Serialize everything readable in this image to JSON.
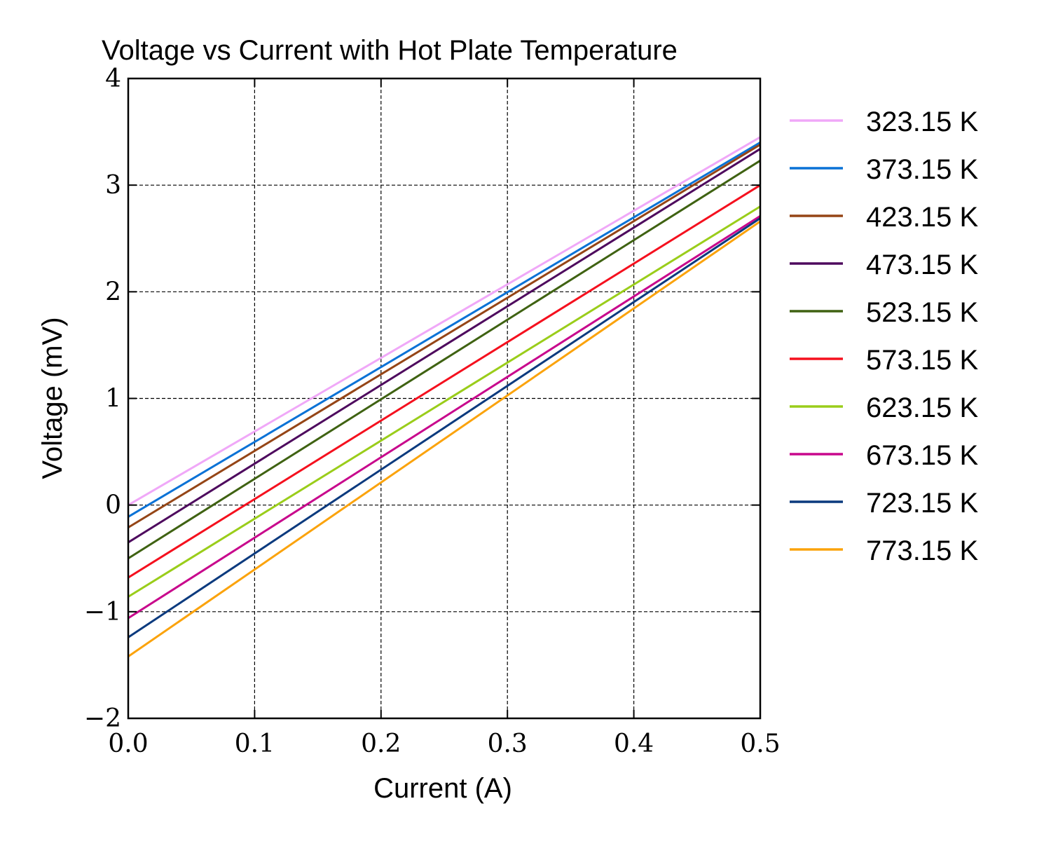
{
  "chart_data": {
    "type": "line",
    "title": "Voltage vs Current with Hot Plate Temperature",
    "xlabel": "Current (A)",
    "ylabel": "Voltage (mV)",
    "xlim": [
      0,
      0.5
    ],
    "ylim": [
      -2,
      4
    ],
    "xticks": [
      0,
      0.1,
      0.2,
      0.3,
      0.4,
      0.5
    ],
    "xtick_labels": [
      "0.0",
      "0.1",
      "0.2",
      "0.3",
      "0.4",
      "0.5"
    ],
    "yticks": [
      -2,
      -1,
      0,
      1,
      2,
      3,
      4
    ],
    "ytick_labels": [
      "−2",
      "−1",
      "0",
      "1",
      "2",
      "3",
      "4"
    ],
    "grid": true,
    "legend_position": "outside-right",
    "x": [
      0,
      0.5
    ],
    "series": [
      {
        "name": "323.15 K",
        "color": "#f0a8f8",
        "values": [
          0.0,
          3.45
        ]
      },
      {
        "name": "373.15 K",
        "color": "#0a72d6",
        "values": [
          -0.11,
          3.4
        ]
      },
      {
        "name": "423.15 K",
        "color": "#954516",
        "values": [
          -0.21,
          3.38
        ]
      },
      {
        "name": "473.15 K",
        "color": "#4e0a5e",
        "values": [
          -0.35,
          3.34
        ]
      },
      {
        "name": "523.15 K",
        "color": "#3f6212",
        "values": [
          -0.5,
          3.23
        ]
      },
      {
        "name": "573.15 K",
        "color": "#f5101e",
        "values": [
          -0.68,
          3.0
        ]
      },
      {
        "name": "623.15 K",
        "color": "#9acd1a",
        "values": [
          -0.86,
          2.8
        ]
      },
      {
        "name": "673.15 K",
        "color": "#c8078c",
        "values": [
          -1.06,
          2.71
        ]
      },
      {
        "name": "723.15 K",
        "color": "#0b3a7e",
        "values": [
          -1.24,
          2.69
        ]
      },
      {
        "name": "773.15 K",
        "color": "#fba30c",
        "values": [
          -1.42,
          2.66
        ]
      }
    ]
  }
}
